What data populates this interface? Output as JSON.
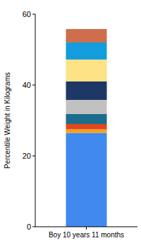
{
  "chart_data": {
    "type": "bar",
    "stacked": true,
    "y_label": "Percentile Weight in Kilograms",
    "categories": [
      "Boy 10 years 11 months"
    ],
    "series": [
      {
        "color": "#4189ee",
        "values": [
          26.5
        ]
      },
      {
        "color": "#f5a11c",
        "values": [
          1
        ]
      },
      {
        "color": "#e2461b",
        "values": [
          1.5
        ]
      },
      {
        "color": "#1b6d8c",
        "values": [
          2.8
        ]
      },
      {
        "color": "#c1c1c1",
        "values": [
          4
        ]
      },
      {
        "color": "#1e3866",
        "values": [
          5.2
        ]
      },
      {
        "color": "#fde286",
        "values": [
          6.2
        ]
      },
      {
        "color": "#139ddf",
        "values": [
          4.8
        ]
      },
      {
        "color": "#cf6e4c",
        "values": [
          3.8
        ]
      }
    ],
    "ylim": [
      0,
      60
    ],
    "yticks": [
      0,
      20,
      40,
      60
    ],
    "grid": false
  }
}
